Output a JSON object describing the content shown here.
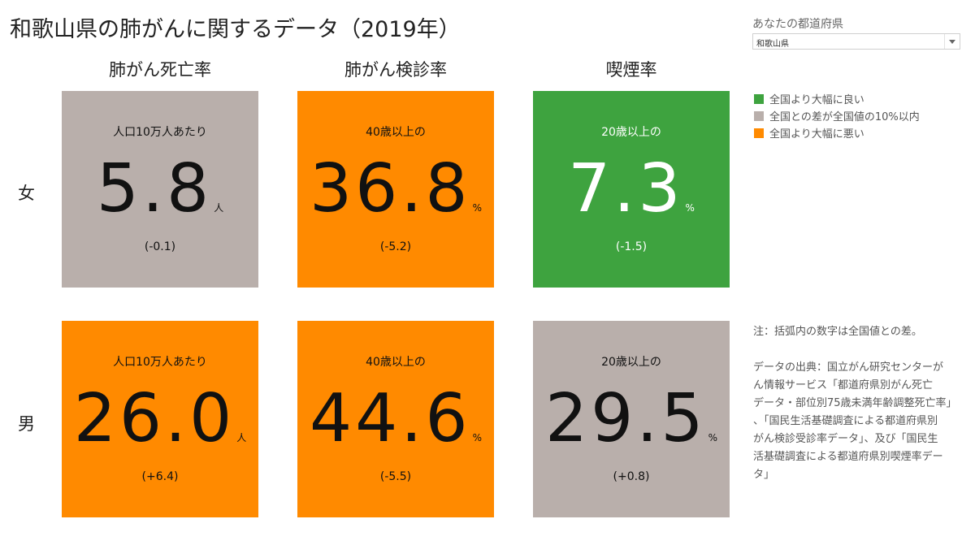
{
  "title": "和歌山県の肺がんに関するデータ（2019年）",
  "selector": {
    "label": "あなたの都道府県",
    "value": "和歌山県"
  },
  "columns": [
    "肺がん死亡率",
    "肺がん検診率",
    "喫煙率"
  ],
  "rows": [
    {
      "label": "女",
      "tiles": [
        {
          "sub": "人口10万人あたり",
          "value": "5.8",
          "unit": "人",
          "diff": "(-0.1)",
          "status": "similar"
        },
        {
          "sub": "40歳以上の",
          "value": "36.8",
          "unit": "%",
          "diff": "(-5.2)",
          "status": "worse"
        },
        {
          "sub": "20歳以上の",
          "value": "7.3",
          "unit": "%",
          "diff": "(-1.5)",
          "status": "better"
        }
      ]
    },
    {
      "label": "男",
      "tiles": [
        {
          "sub": "人口10万人あたり",
          "value": "26.0",
          "unit": "人",
          "diff": "(+6.4)",
          "status": "worse"
        },
        {
          "sub": "40歳以上の",
          "value": "44.6",
          "unit": "%",
          "diff": "(-5.5)",
          "status": "worse"
        },
        {
          "sub": "20歳以上の",
          "value": "29.5",
          "unit": "%",
          "diff": "(+0.8)",
          "status": "similar"
        }
      ]
    }
  ],
  "legend": [
    {
      "label": "全国より大幅に良い",
      "color": "#3ea33f"
    },
    {
      "label": "全国との差が全国値の10%以内",
      "color": "#b9afab"
    },
    {
      "label": "全国より大幅に悪い",
      "color": "#ff8a00"
    }
  ],
  "colors": {
    "better": "#3ea33f",
    "similar": "#b9afab",
    "worse": "#ff8a00"
  },
  "note": {
    "lines": [
      "注：括弧内の数字は全国値との差。"
    ],
    "source_lines": [
      "データの出典：国立がん研究センターが",
      "ん情報サービス「都道府県別がん死亡",
      "データ・部位別75歳未満年齢調整死亡率」",
      "、「国民生活基礎調査による都道府県別",
      "がん検診受診率データ」、及び「国民生",
      "活基礎調査による都道府県別喫煙率デー",
      "タ」"
    ]
  }
}
